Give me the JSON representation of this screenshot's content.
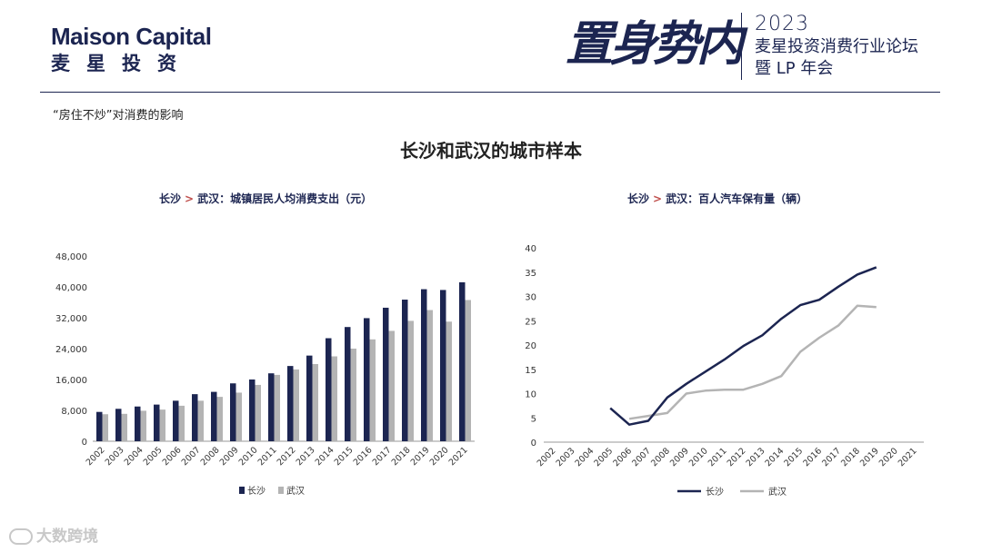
{
  "header": {
    "brand_en": "Maison Capital",
    "brand_cn": "麦星投资",
    "calligraphy": "置身势内",
    "event_year": "2023",
    "event_line1": "麦星投资消费行业论坛",
    "event_line2": "暨 LP 年会"
  },
  "section_title": "“房住不炒”对消费的影响",
  "main_title": "长沙和武汉的城市样本",
  "watermark": "大数跨境",
  "colors": {
    "changsha": "#1c2551",
    "wuhan": "#b4b4b4",
    "accent": "#c0504d"
  },
  "chart_data": [
    {
      "type": "bar",
      "title_a": "长沙",
      "title_sep": ">",
      "title_b": "武汉：城镇居民人均消费支出（元）",
      "categories": [
        "2002",
        "2003",
        "2004",
        "2005",
        "2006",
        "2007",
        "2008",
        "2009",
        "2010",
        "2011",
        "2012",
        "2013",
        "2014",
        "2015",
        "2016",
        "2017",
        "2018",
        "2019",
        "2020",
        "2021"
      ],
      "series": [
        {
          "name": "长沙",
          "values": [
            7600,
            8400,
            9000,
            9500,
            10500,
            12200,
            12800,
            15000,
            16000,
            17600,
            19500,
            22200,
            26700,
            29600,
            31900,
            34600,
            36700,
            39400,
            39200,
            41200
          ]
        },
        {
          "name": "武汉",
          "values": [
            7000,
            7100,
            7900,
            8200,
            9200,
            10500,
            11500,
            12600,
            14600,
            17200,
            18600,
            20000,
            22000,
            24000,
            26400,
            28600,
            31200,
            34000,
            31000,
            36600
          ]
        }
      ],
      "ylim": [
        0,
        48000
      ],
      "yticks": [
        "0",
        "8,000",
        "16,000",
        "24,000",
        "32,000",
        "40,000",
        "48,000"
      ],
      "ytick_values": [
        0,
        8000,
        16000,
        24000,
        32000,
        40000,
        48000
      ],
      "legend": "bottom"
    },
    {
      "type": "line",
      "title_a": "长沙",
      "title_sep": ">",
      "title_b": "武汉：百人汽车保有量（辆）",
      "categories": [
        "2002",
        "2003",
        "2004",
        "2005",
        "2006",
        "2007",
        "2008",
        "2009",
        "2010",
        "2011",
        "2012",
        "2013",
        "2014",
        "2015",
        "2016",
        "2017",
        "2018",
        "2019",
        "2020",
        "2021"
      ],
      "series": [
        {
          "name": "长沙",
          "values": [
            null,
            null,
            null,
            7.0,
            3.6,
            4.4,
            9.2,
            12.0,
            14.5,
            17.0,
            19.8,
            22.0,
            25.4,
            28.2,
            29.3,
            32.0,
            34.5,
            36.0,
            null,
            null
          ]
        },
        {
          "name": "武汉",
          "values": [
            null,
            null,
            null,
            null,
            4.8,
            5.4,
            6.0,
            10.0,
            10.6,
            10.8,
            10.8,
            12.0,
            13.6,
            18.6,
            21.5,
            24.0,
            28.1,
            27.8,
            null,
            null
          ]
        }
      ],
      "ylim": [
        0,
        40
      ],
      "yticks": [
        "0",
        "5",
        "10",
        "15",
        "20",
        "25",
        "30",
        "35",
        "40"
      ],
      "ytick_values": [
        0,
        5,
        10,
        15,
        20,
        25,
        30,
        35,
        40
      ],
      "legend": "bottom"
    }
  ]
}
